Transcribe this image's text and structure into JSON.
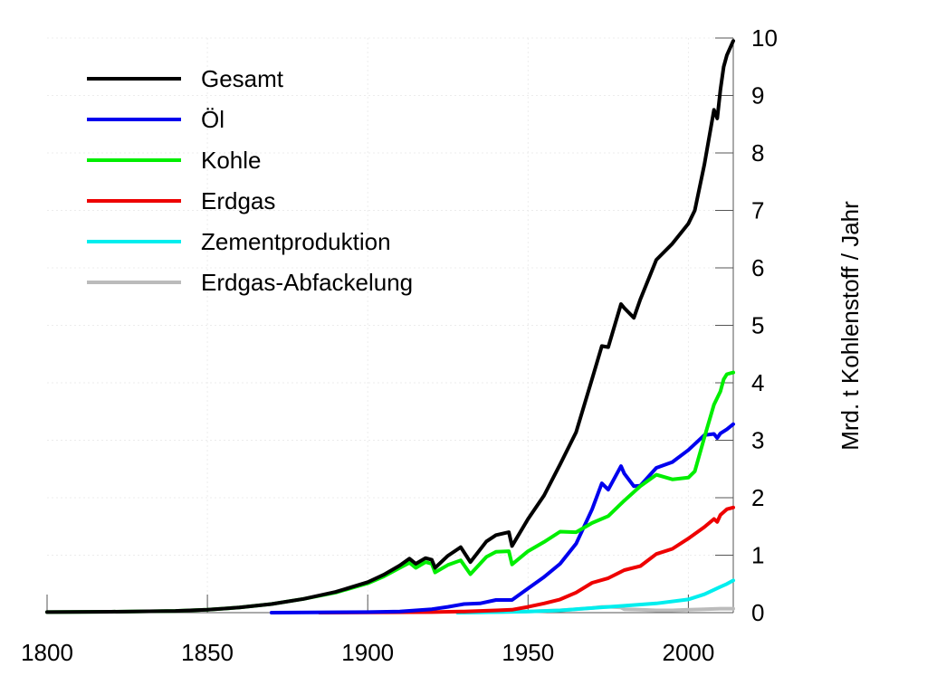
{
  "chart_data": {
    "type": "line",
    "title": "",
    "xlabel": "",
    "ylabel": "Mrd. t Kohlenstoff / Jahr",
    "xlim": [
      1800,
      2014
    ],
    "ylim": [
      0,
      10
    ],
    "x_ticks": [
      "1800",
      "1850",
      "1900",
      "1950",
      "2000"
    ],
    "y_ticks": [
      "0",
      "1",
      "2",
      "3",
      "4",
      "5",
      "6",
      "7",
      "8",
      "9",
      "10"
    ],
    "grid": true,
    "legend_position": "top-left",
    "series": [
      {
        "name": "Gesamt",
        "color": "#000000",
        "points": [
          [
            1800,
            0.01
          ],
          [
            1820,
            0.015
          ],
          [
            1840,
            0.03
          ],
          [
            1850,
            0.05
          ],
          [
            1860,
            0.09
          ],
          [
            1870,
            0.15
          ],
          [
            1880,
            0.24
          ],
          [
            1890,
            0.36
          ],
          [
            1900,
            0.53
          ],
          [
            1905,
            0.66
          ],
          [
            1910,
            0.82
          ],
          [
            1913,
            0.94
          ],
          [
            1915,
            0.85
          ],
          [
            1918,
            0.95
          ],
          [
            1920,
            0.92
          ],
          [
            1921,
            0.78
          ],
          [
            1925,
            0.99
          ],
          [
            1929,
            1.14
          ],
          [
            1932,
            0.88
          ],
          [
            1937,
            1.24
          ],
          [
            1940,
            1.35
          ],
          [
            1944,
            1.4
          ],
          [
            1945,
            1.16
          ],
          [
            1950,
            1.63
          ],
          [
            1955,
            2.04
          ],
          [
            1960,
            2.58
          ],
          [
            1965,
            3.14
          ],
          [
            1970,
            4.07
          ],
          [
            1973,
            4.64
          ],
          [
            1975,
            4.62
          ],
          [
            1979,
            5.37
          ],
          [
            1980,
            5.3
          ],
          [
            1983,
            5.13
          ],
          [
            1985,
            5.45
          ],
          [
            1990,
            6.14
          ],
          [
            1995,
            6.42
          ],
          [
            2000,
            6.77
          ],
          [
            2002,
            7.0
          ],
          [
            2005,
            7.8
          ],
          [
            2008,
            8.75
          ],
          [
            2009,
            8.6
          ],
          [
            2010,
            9.1
          ],
          [
            2011,
            9.5
          ],
          [
            2012,
            9.7
          ],
          [
            2014,
            9.95
          ]
        ]
      },
      {
        "name": "Öl",
        "color": "#0000ee",
        "points": [
          [
            1870,
            0.0
          ],
          [
            1900,
            0.01
          ],
          [
            1910,
            0.02
          ],
          [
            1920,
            0.06
          ],
          [
            1925,
            0.1
          ],
          [
            1930,
            0.15
          ],
          [
            1935,
            0.16
          ],
          [
            1940,
            0.22
          ],
          [
            1945,
            0.22
          ],
          [
            1950,
            0.42
          ],
          [
            1955,
            0.62
          ],
          [
            1960,
            0.85
          ],
          [
            1965,
            1.2
          ],
          [
            1970,
            1.8
          ],
          [
            1973,
            2.25
          ],
          [
            1975,
            2.14
          ],
          [
            1979,
            2.55
          ],
          [
            1980,
            2.42
          ],
          [
            1983,
            2.2
          ],
          [
            1985,
            2.21
          ],
          [
            1990,
            2.52
          ],
          [
            1995,
            2.62
          ],
          [
            2000,
            2.83
          ],
          [
            2005,
            3.09
          ],
          [
            2008,
            3.11
          ],
          [
            2009,
            3.04
          ],
          [
            2010,
            3.12
          ],
          [
            2012,
            3.19
          ],
          [
            2014,
            3.28
          ]
        ]
      },
      {
        "name": "Kohle",
        "color": "#00ee00",
        "points": [
          [
            1800,
            0.01
          ],
          [
            1820,
            0.015
          ],
          [
            1840,
            0.03
          ],
          [
            1850,
            0.05
          ],
          [
            1860,
            0.09
          ],
          [
            1870,
            0.15
          ],
          [
            1880,
            0.24
          ],
          [
            1890,
            0.35
          ],
          [
            1900,
            0.51
          ],
          [
            1905,
            0.63
          ],
          [
            1910,
            0.78
          ],
          [
            1913,
            0.87
          ],
          [
            1915,
            0.78
          ],
          [
            1918,
            0.88
          ],
          [
            1920,
            0.85
          ],
          [
            1921,
            0.7
          ],
          [
            1925,
            0.83
          ],
          [
            1929,
            0.91
          ],
          [
            1932,
            0.67
          ],
          [
            1937,
            0.97
          ],
          [
            1940,
            1.06
          ],
          [
            1944,
            1.07
          ],
          [
            1945,
            0.84
          ],
          [
            1950,
            1.07
          ],
          [
            1955,
            1.23
          ],
          [
            1960,
            1.41
          ],
          [
            1965,
            1.4
          ],
          [
            1970,
            1.56
          ],
          [
            1975,
            1.68
          ],
          [
            1980,
            1.95
          ],
          [
            1985,
            2.2
          ],
          [
            1990,
            2.4
          ],
          [
            1995,
            2.32
          ],
          [
            2000,
            2.35
          ],
          [
            2002,
            2.46
          ],
          [
            2005,
            3.05
          ],
          [
            2008,
            3.62
          ],
          [
            2010,
            3.85
          ],
          [
            2011,
            4.06
          ],
          [
            2012,
            4.15
          ],
          [
            2014,
            4.18
          ]
        ]
      },
      {
        "name": "Erdgas",
        "color": "#ee0000",
        "points": [
          [
            1885,
            0.0
          ],
          [
            1900,
            0.005
          ],
          [
            1920,
            0.01
          ],
          [
            1930,
            0.02
          ],
          [
            1940,
            0.04
          ],
          [
            1945,
            0.05
          ],
          [
            1950,
            0.1
          ],
          [
            1955,
            0.16
          ],
          [
            1960,
            0.23
          ],
          [
            1965,
            0.35
          ],
          [
            1970,
            0.52
          ],
          [
            1975,
            0.6
          ],
          [
            1980,
            0.74
          ],
          [
            1985,
            0.81
          ],
          [
            1990,
            1.02
          ],
          [
            1995,
            1.11
          ],
          [
            2000,
            1.29
          ],
          [
            2005,
            1.49
          ],
          [
            2008,
            1.63
          ],
          [
            2009,
            1.58
          ],
          [
            2010,
            1.7
          ],
          [
            2012,
            1.8
          ],
          [
            2014,
            1.83
          ]
        ]
      },
      {
        "name": "Zementproduktion",
        "color": "#00eeee",
        "points": [
          [
            1928,
            0.0
          ],
          [
            1940,
            0.01
          ],
          [
            1950,
            0.02
          ],
          [
            1960,
            0.04
          ],
          [
            1970,
            0.08
          ],
          [
            1980,
            0.12
          ],
          [
            1990,
            0.16
          ],
          [
            2000,
            0.23
          ],
          [
            2005,
            0.32
          ],
          [
            2010,
            0.45
          ],
          [
            2012,
            0.5
          ],
          [
            2014,
            0.56
          ]
        ]
      },
      {
        "name": "Erdgas-Abfackelung",
        "color": "#bbbbbb",
        "points": [
          [
            1930,
            0.0
          ],
          [
            1950,
            0.02
          ],
          [
            1960,
            0.04
          ],
          [
            1965,
            0.06
          ],
          [
            1970,
            0.08
          ],
          [
            1973,
            0.1
          ],
          [
            1976,
            0.1
          ],
          [
            1979,
            0.09
          ],
          [
            1980,
            0.06
          ],
          [
            1985,
            0.05
          ],
          [
            1990,
            0.04
          ],
          [
            1995,
            0.04
          ],
          [
            2000,
            0.05
          ],
          [
            2005,
            0.06
          ],
          [
            2010,
            0.07
          ],
          [
            2014,
            0.07
          ]
        ]
      }
    ]
  }
}
